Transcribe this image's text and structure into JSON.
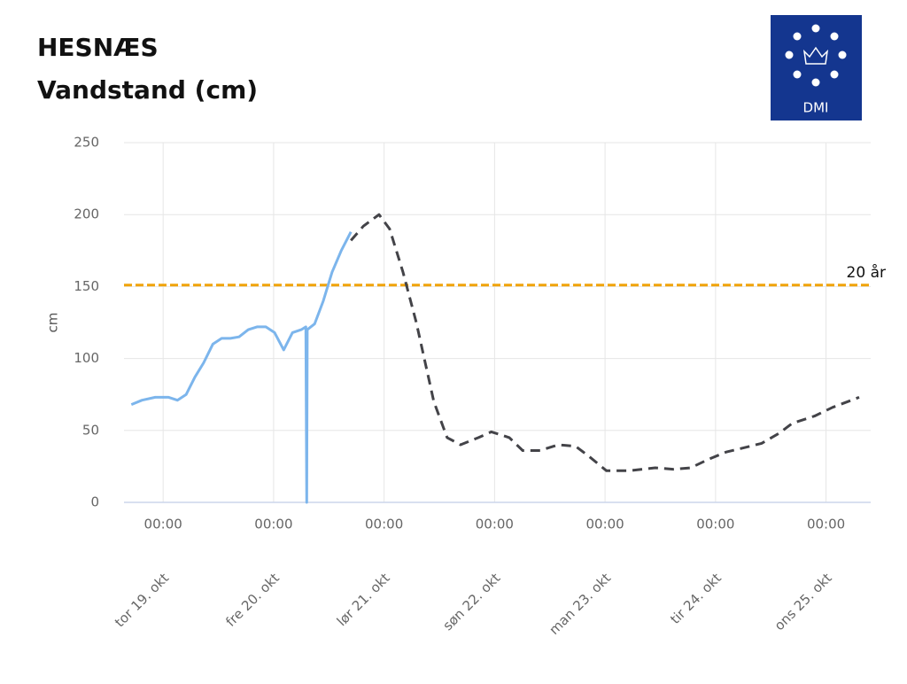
{
  "chart_data": {
    "type": "line",
    "title": "HESNÆS",
    "subtitle": "Vandstand (cm)",
    "logo": "DMI",
    "y_label": "cm",
    "xlim": [
      -8.5,
      153.7
    ],
    "xticks": [
      {
        "value": 0,
        "label": "00:00"
      },
      {
        "value": 24,
        "label": "00:00"
      },
      {
        "value": 48,
        "label": "00:00"
      },
      {
        "value": 72,
        "label": "00:00"
      },
      {
        "value": 96,
        "label": "00:00"
      },
      {
        "value": 120,
        "label": "00:00"
      },
      {
        "value": 144,
        "label": "00:00"
      }
    ],
    "xtick_dates": [
      "tor 19. okt",
      "fre 20. okt",
      "lør 21. okt",
      "søn 22. okt",
      "man 23. okt",
      "tir 24. okt",
      "ons 25. okt"
    ],
    "ylim": [
      0,
      250
    ],
    "yticks": [
      0,
      50,
      100,
      150,
      200,
      250
    ],
    "grid": true,
    "threshold": {
      "label": "20 år",
      "value": 151,
      "color": "#f0a30a"
    },
    "series": [
      {
        "color": "#7cb5ec",
        "dashed": false,
        "x": [
          -6.9,
          -4.6,
          -1.7,
          1.2,
          3.1,
          5,
          6.9,
          8.8,
          10.8,
          12.7,
          14.6,
          16.5,
          18.5,
          20.4,
          22.3,
          24.2,
          26.2,
          28.1,
          30,
          31,
          31.2,
          31.3,
          32.9,
          34.8,
          36.7,
          38.7,
          40.8
        ],
        "values": [
          68,
          71,
          73,
          73,
          71,
          75,
          87,
          97,
          110,
          114,
          114,
          115,
          120,
          122,
          122,
          118,
          106,
          118,
          120,
          122,
          0,
          120,
          124,
          140,
          160,
          175,
          188
        ]
      },
      {
        "color": "#434348",
        "dashed": true,
        "x": [
          40.8,
          43.5,
          46.9,
          49.2,
          52.1,
          55,
          58.8,
          61.7,
          64.6,
          68.5,
          71.3,
          75.2,
          78.1,
          81.9,
          85.8,
          89.6,
          92.5,
          96.3,
          101.2,
          106.9,
          110.8,
          114.6,
          118.5,
          122.3,
          126.2,
          130,
          133.8,
          136.7,
          141.5,
          145.4,
          151.2
        ],
        "values": [
          182,
          192,
          200,
          190,
          160,
          125,
          70,
          45,
          40,
          45,
          49,
          45,
          36,
          36,
          40,
          39,
          32,
          22,
          22,
          24,
          23,
          24,
          30,
          35,
          38,
          41,
          48,
          55,
          60,
          66,
          73
        ]
      }
    ]
  }
}
